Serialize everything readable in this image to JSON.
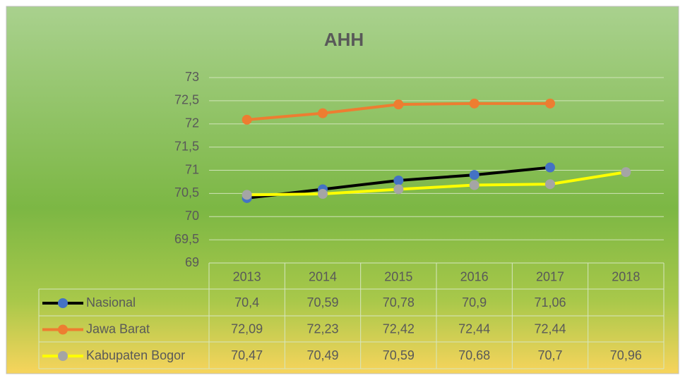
{
  "chart_data": {
    "type": "line",
    "title": "AHH",
    "categories": [
      "2013",
      "2014",
      "2015",
      "2016",
      "2017",
      "2018"
    ],
    "series": [
      {
        "name": "Nasional",
        "color": "#000000",
        "marker_color": "#4472c4",
        "values": [
          70.4,
          70.59,
          70.78,
          70.9,
          71.06,
          null
        ],
        "value_labels": [
          "70,4",
          "70,59",
          "70,78",
          "70,9",
          "71,06",
          null
        ]
      },
      {
        "name": "Jawa Barat",
        "color": "#ed7d31",
        "marker_color": "#ed7d31",
        "values": [
          72.09,
          72.23,
          72.42,
          72.44,
          72.44,
          null
        ],
        "value_labels": [
          "72,09",
          "72,23",
          "72,42",
          "72,44",
          "72,44",
          null
        ]
      },
      {
        "name": "Kabupaten Bogor",
        "color": "#ffff00",
        "marker_color": "#a5a5a5",
        "values": [
          70.47,
          70.49,
          70.59,
          70.68,
          70.7,
          70.96
        ],
        "value_labels": [
          "70,47",
          "70,49",
          "70,59",
          "70,68",
          "70,7",
          "70,96"
        ]
      }
    ],
    "ylim": [
      69,
      73
    ],
    "yticks": [
      69,
      {
        "value": 69.5,
        "label": "69,5"
      },
      70,
      {
        "value": 70.5,
        "label": "70,5"
      },
      71,
      {
        "value": 71.5,
        "label": "71,5"
      },
      72,
      {
        "value": 72.5,
        "label": "72,5"
      },
      73
    ],
    "grid": true,
    "data_table": true
  }
}
